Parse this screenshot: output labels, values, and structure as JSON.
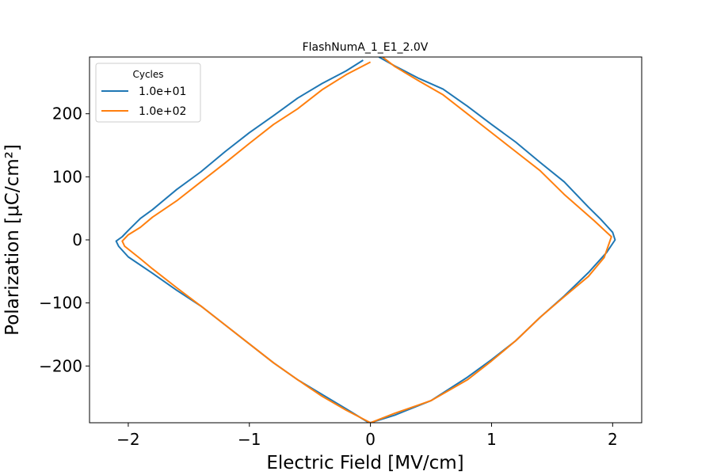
{
  "chart_data": {
    "type": "line",
    "title": "FlashNumA_1_E1_2.0V",
    "xlabel": "Electric Field [MV/cm]",
    "ylabel": "Polarization [μC/cm²]",
    "xlim": [
      -2.32,
      2.24
    ],
    "ylim": [
      -290,
      290
    ],
    "xticks": [
      -2,
      -1,
      0,
      1,
      2
    ],
    "xtick_labels": [
      "−2",
      "−1",
      "0",
      "1",
      "2"
    ],
    "yticks": [
      -200,
      -100,
      0,
      100,
      200
    ],
    "ytick_labels": [
      "−200",
      "−100",
      "0",
      "100",
      "200"
    ],
    "grid": false,
    "legend": {
      "title": "Cycles",
      "position": "top-left"
    },
    "series": [
      {
        "name": "1.0e+01",
        "color": "#1f77b4",
        "x": [
          -0.06,
          -0.2,
          -0.4,
          -0.6,
          -0.8,
          -1.0,
          -1.2,
          -1.4,
          -1.6,
          -1.8,
          -1.9,
          -2.0,
          -2.05,
          -2.1,
          -2.08,
          -2.0,
          -1.8,
          -1.6,
          -1.4,
          -1.2,
          -1.0,
          -0.8,
          -0.6,
          -0.4,
          -0.2,
          -0.03,
          0.0,
          0.2,
          0.5,
          0.8,
          1.0,
          1.2,
          1.4,
          1.6,
          1.8,
          1.95,
          2.02,
          2.0,
          1.9,
          1.8,
          1.6,
          1.4,
          1.2,
          1.0,
          0.8,
          0.6,
          0.4,
          0.2,
          0.07
        ],
        "y": [
          285,
          268,
          248,
          225,
          197,
          170,
          140,
          108,
          80,
          48,
          34,
          15,
          5,
          -2,
          -10,
          -27,
          -53,
          -80,
          -105,
          -135,
          -165,
          -195,
          -222,
          -245,
          -268,
          -288,
          -290,
          -278,
          -255,
          -218,
          -190,
          -160,
          -123,
          -89,
          -52,
          -20,
          0,
          12,
          33,
          52,
          92,
          123,
          155,
          183,
          212,
          239,
          256,
          276,
          290
        ]
      },
      {
        "name": "1.0e+02",
        "color": "#ff7f0e",
        "x": [
          0.0,
          -0.2,
          -0.4,
          -0.6,
          -0.8,
          -1.0,
          -1.2,
          -1.4,
          -1.6,
          -1.8,
          -1.9,
          -2.0,
          -2.05,
          -2.03,
          -1.9,
          -1.8,
          -1.6,
          -1.4,
          -1.2,
          -1.0,
          -0.8,
          -0.6,
          -0.4,
          -0.2,
          0.0,
          0.2,
          0.5,
          0.8,
          1.0,
          1.2,
          1.4,
          1.6,
          1.8,
          1.93,
          1.99,
          1.95,
          1.85,
          1.6,
          1.4,
          1.2,
          1.0,
          0.8,
          0.6,
          0.4,
          0.2,
          0.1
        ],
        "y": [
          282,
          262,
          238,
          208,
          183,
          153,
          122,
          92,
          62,
          36,
          20,
          8,
          -2,
          -10,
          -30,
          -46,
          -76,
          -105,
          -135,
          -165,
          -195,
          -222,
          -248,
          -270,
          -290,
          -275,
          -255,
          -222,
          -192,
          -160,
          -123,
          -90,
          -58,
          -28,
          5,
          12,
          30,
          72,
          110,
          140,
          170,
          200,
          230,
          252,
          275,
          290
        ]
      }
    ]
  }
}
